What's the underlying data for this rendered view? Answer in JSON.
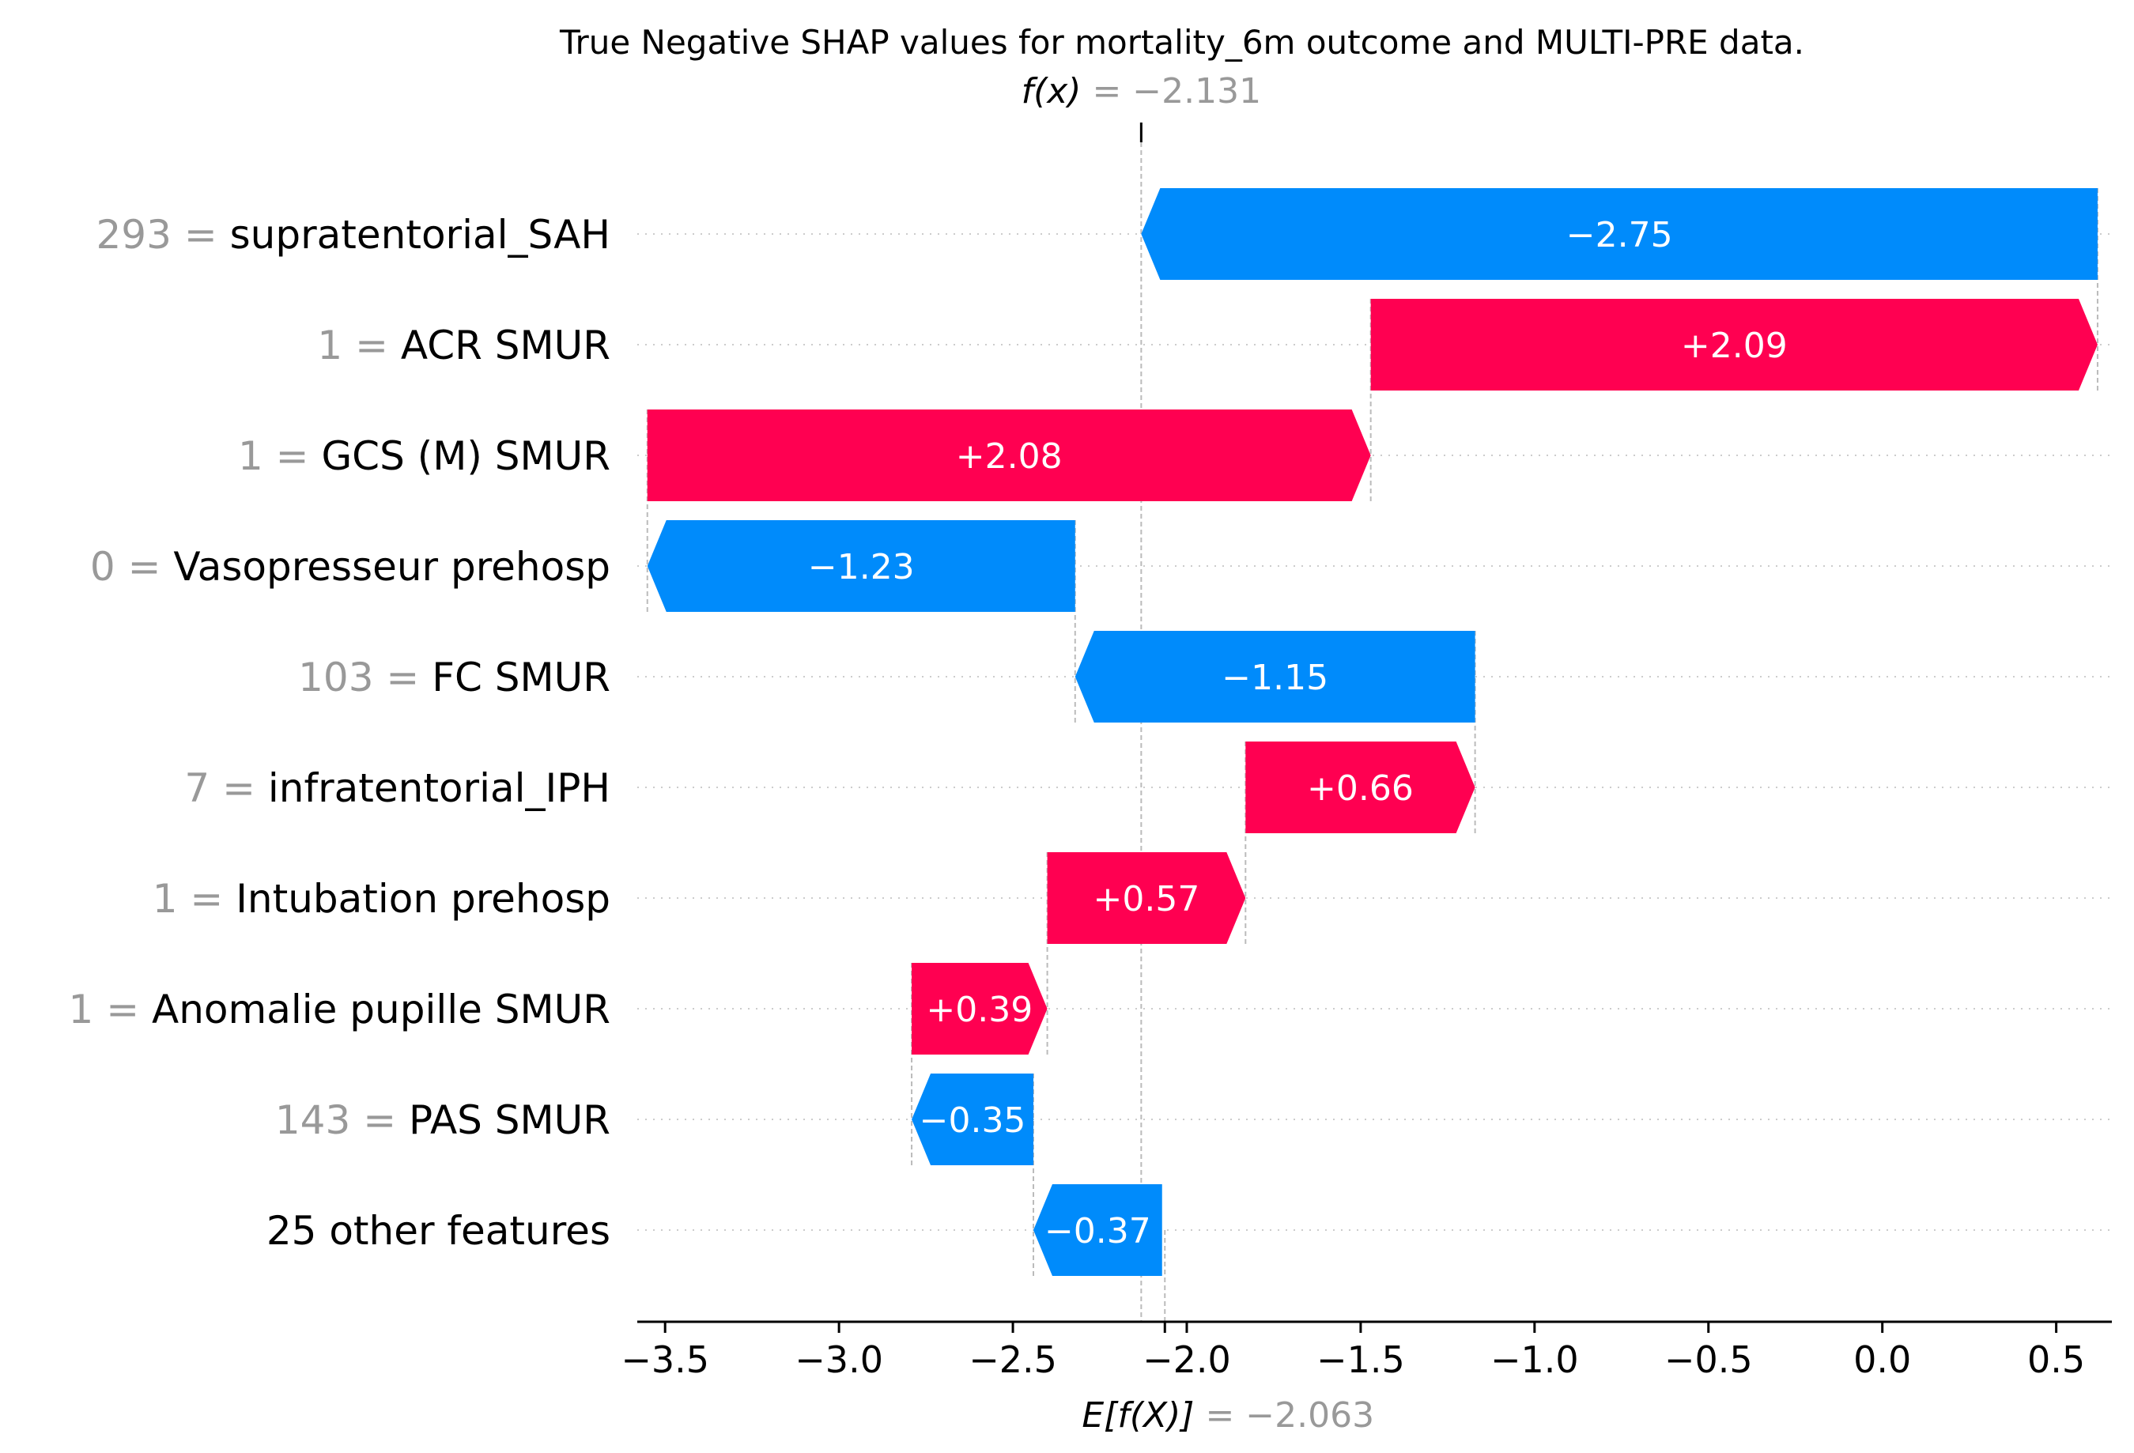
{
  "chart_data": {
    "type": "waterfall",
    "title": "True Negative SHAP values for mortality_6m outcome and MULTI-PRE data.",
    "fx": {
      "label": "f(x)",
      "value": -2.131,
      "value_text": "= −2.131"
    },
    "base": {
      "label": "E[f(X)]",
      "value": -2.063,
      "value_text": "= −2.063"
    },
    "xlim": [
      -3.58,
      0.66
    ],
    "ticks": [
      {
        "value": -3.5,
        "label": "−3.5"
      },
      {
        "value": -3.0,
        "label": "−3.0"
      },
      {
        "value": -2.5,
        "label": "−2.5"
      },
      {
        "value": -2.0,
        "label": "−2.0"
      },
      {
        "value": -1.5,
        "label": "−1.5"
      },
      {
        "value": -1.0,
        "label": "−1.0"
      },
      {
        "value": -0.5,
        "label": "−0.5"
      },
      {
        "value": 0.0,
        "label": "0.0"
      },
      {
        "value": 0.5,
        "label": "0.5"
      }
    ],
    "colors": {
      "positive": "#ff0051",
      "negative": "#008bfb"
    },
    "features": [
      {
        "value_text": "293 =",
        "name": "supratentorial_SAH",
        "contribution": -2.75,
        "label": "−2.75"
      },
      {
        "value_text": "1 =",
        "name": "ACR SMUR",
        "contribution": 2.09,
        "label": "+2.09"
      },
      {
        "value_text": "1 =",
        "name": "GCS (M) SMUR ",
        "contribution": 2.08,
        "label": "+2.08"
      },
      {
        "value_text": "0 =",
        "name": "Vasopresseur prehosp",
        "contribution": -1.23,
        "label": "−1.23"
      },
      {
        "value_text": "103 =",
        "name": "FC SMUR ",
        "contribution": -1.15,
        "label": "−1.15"
      },
      {
        "value_text": "7 =",
        "name": "infratentorial_IPH",
        "contribution": 0.66,
        "label": "+0.66"
      },
      {
        "value_text": "1 =",
        "name": "Intubation prehosp",
        "contribution": 0.57,
        "label": "+0.57"
      },
      {
        "value_text": "1 =",
        "name": "Anomalie pupille SMUR",
        "contribution": 0.39,
        "label": "+0.39"
      },
      {
        "value_text": "143 =",
        "name": "PAS  SMUR ",
        "contribution": -0.35,
        "label": "−0.35"
      },
      {
        "value_text": "",
        "name": "25 other features",
        "contribution": -0.37,
        "label": "−0.37"
      }
    ]
  }
}
